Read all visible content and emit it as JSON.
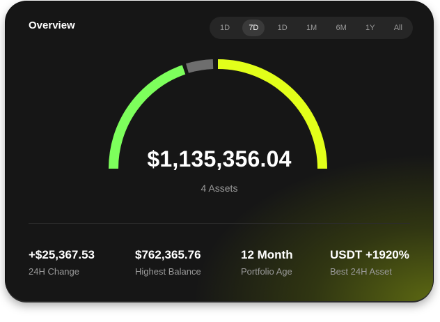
{
  "header": {
    "title": "Overview"
  },
  "periods": [
    {
      "label": "1D",
      "active": false
    },
    {
      "label": "7D",
      "active": true
    },
    {
      "label": "1D",
      "active": false
    },
    {
      "label": "1M",
      "active": false
    },
    {
      "label": "6M",
      "active": false
    },
    {
      "label": "1Y",
      "active": false
    },
    {
      "label": "All",
      "active": false
    }
  ],
  "gauge": {
    "total": "$1,135,356.04",
    "assets": "4 Assets",
    "colors": {
      "green": "#7dff5c",
      "gray": "#6e6e6e",
      "yellow": "#e2ff1a"
    }
  },
  "stats": [
    {
      "value": "+$25,367.53",
      "label": "24H Change"
    },
    {
      "value": "$762,365.76",
      "label": "Highest Balance"
    },
    {
      "value": "12 Month",
      "label": "Portfolio Age"
    },
    {
      "value": "USDT +1920%",
      "label": "Best 24H Asset"
    }
  ]
}
